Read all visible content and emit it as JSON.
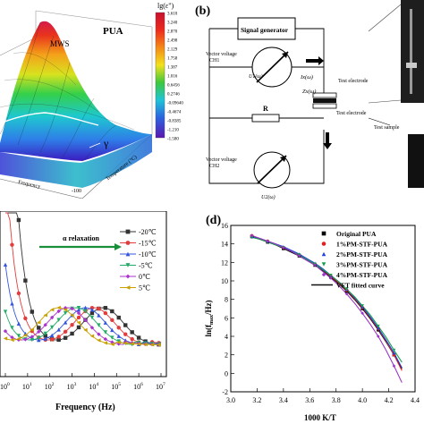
{
  "panel_a": {
    "inset_label": "PUA",
    "cbar_title": "lg(ε\")",
    "cbar_ticks": [
      "3.610",
      "3.240",
      "2.870",
      "2.498",
      "2.129",
      "1.758",
      "1.387",
      "1.016",
      "0.6456",
      "0.2746",
      "-0.09640",
      "-0.4674",
      "-0.8385",
      "-1.210",
      "-1.580"
    ],
    "label_mws": "MWS",
    "label_gamma": "γ",
    "axis_temp": "Temperature (°C)",
    "axis_freq": "Frequency",
    "tick_neg100": "-100"
  },
  "panel_b": {
    "letter": "(b)",
    "signal_generator": "Signal generator",
    "vv_ch1": "Vector voltage\nCH1",
    "vv_ch2": "Vector voltage\nCH2",
    "u1": "U1(ω)",
    "u2": "U2(ω)",
    "i": "Ix(ω)",
    "z": "Zx(ω)",
    "test_electrode_top": "Test electrode",
    "test_electrode_bottom": "Test electrode",
    "test_sample": "Test sample",
    "r": "R"
  },
  "panel_c": {
    "relaxation_label": "α relaxation",
    "xlabel": "Frequency (Hz)",
    "xticks": [
      "10",
      "10",
      "10",
      "10",
      "10",
      "10",
      "10",
      "10"
    ],
    "xtick_exps": [
      "0",
      "1",
      "2",
      "3",
      "4",
      "5",
      "6",
      "7"
    ],
    "chart_data": {
      "type": "line",
      "xlabel": "Frequency (Hz)",
      "x_scale": "log",
      "xlim": [
        1,
        10000000
      ],
      "series": [
        {
          "name": "-20℃",
          "color": "#333333",
          "marker": "square",
          "peak_log_f": 4.4
        },
        {
          "name": "-15℃",
          "color": "#e23c3c",
          "marker": "circle",
          "peak_log_f": 4.0
        },
        {
          "name": "-10℃",
          "color": "#3355dd",
          "marker": "triangle-up",
          "peak_log_f": 3.6
        },
        {
          "name": "-5℃",
          "color": "#22aa66",
          "marker": "triangle-down",
          "peak_log_f": 3.2
        },
        {
          "name": "0℃",
          "color": "#aa33cc",
          "marker": "diamond",
          "peak_log_f": 2.8
        },
        {
          "name": "5℃",
          "color": "#c8a000",
          "marker": "triangle-left",
          "peak_log_f": 2.4
        }
      ]
    }
  },
  "panel_d": {
    "letter": "(d)",
    "ylabel": "ln(f_max/Hz)",
    "xlabel": "1000 K/T",
    "chart_data": {
      "type": "scatter",
      "xlabel": "1000 K/T",
      "ylabel": "ln(fmax/Hz)",
      "xlim": [
        3.0,
        4.4
      ],
      "ylim": [
        -2,
        16
      ],
      "xticks": [
        "3.0",
        "3.2",
        "3.4",
        "3.6",
        "3.8",
        "4.0",
        "4.2",
        "4.4"
      ],
      "yticks": [
        "-2",
        "0",
        "2",
        "4",
        "6",
        "8",
        "10",
        "12",
        "14",
        "16"
      ],
      "series": [
        {
          "name": "Original PUA",
          "color": "#000000",
          "marker": "square",
          "x": [
            3.16,
            3.22,
            3.28,
            3.34,
            3.4,
            3.46,
            3.52,
            3.58,
            3.64,
            3.7,
            3.76,
            3.82,
            3.88,
            3.94,
            4.0,
            4.06,
            4.12,
            4.18,
            4.24,
            4.3
          ],
          "y": [
            14.8,
            14.5,
            14.2,
            13.9,
            13.5,
            13.1,
            12.7,
            12.2,
            11.7,
            11.1,
            10.4,
            9.7,
            8.9,
            8.0,
            7.0,
            5.9,
            4.7,
            3.4,
            2.0,
            0.5
          ]
        },
        {
          "name": "1%PM-STF-PUA",
          "color": "#e02020",
          "marker": "circle",
          "x": [
            3.16,
            3.22,
            3.28,
            3.34,
            3.4,
            3.46,
            3.52,
            3.58,
            3.64,
            3.7,
            3.76,
            3.82,
            3.88,
            3.94,
            4.0,
            4.06,
            4.12,
            4.18,
            4.24,
            4.3
          ],
          "y": [
            14.9,
            14.6,
            14.3,
            14.0,
            13.6,
            13.2,
            12.8,
            12.3,
            11.8,
            11.2,
            10.5,
            9.8,
            9.0,
            8.1,
            7.1,
            6.0,
            4.8,
            3.5,
            2.0,
            0.3
          ]
        },
        {
          "name": "2%PM-STF-PUA",
          "color": "#2040e0",
          "marker": "triangle-up",
          "x": [
            3.16,
            3.22,
            3.28,
            3.34,
            3.4,
            3.46,
            3.52,
            3.58,
            3.64,
            3.7,
            3.76,
            3.82,
            3.88,
            3.94,
            4.0,
            4.06,
            4.12,
            4.18,
            4.24,
            4.3
          ],
          "y": [
            14.8,
            14.6,
            14.3,
            14.0,
            13.7,
            13.3,
            12.9,
            12.4,
            11.9,
            11.3,
            10.6,
            9.9,
            9.1,
            8.2,
            7.2,
            6.1,
            4.9,
            3.6,
            2.2,
            0.6
          ]
        },
        {
          "name": "3%PM-STF-PUA",
          "color": "#15a050",
          "marker": "triangle-down",
          "x": [
            3.16,
            3.22,
            3.28,
            3.34,
            3.4,
            3.46,
            3.52,
            3.58,
            3.64,
            3.7,
            3.76,
            3.82,
            3.88,
            3.94,
            4.0,
            4.06,
            4.12,
            4.18,
            4.24,
            4.3
          ],
          "y": [
            14.7,
            14.5,
            14.2,
            13.9,
            13.6,
            13.2,
            12.8,
            12.3,
            11.8,
            11.2,
            10.6,
            9.9,
            9.1,
            8.3,
            7.3,
            6.3,
            5.1,
            3.9,
            2.5,
            1.2
          ]
        },
        {
          "name": "4%PM-STF-PUA",
          "color": "#9a35c8",
          "marker": "diamond",
          "x": [
            3.16,
            3.22,
            3.28,
            3.34,
            3.4,
            3.46,
            3.52,
            3.58,
            3.64,
            3.7,
            3.76,
            3.82,
            3.88,
            3.94,
            4.0,
            4.06,
            4.12,
            4.18,
            4.24,
            4.3
          ],
          "y": [
            14.9,
            14.6,
            14.3,
            14.0,
            13.6,
            13.2,
            12.7,
            12.2,
            11.7,
            11.0,
            10.3,
            9.5,
            8.6,
            7.6,
            6.5,
            5.3,
            4.0,
            2.5,
            0.8,
            -1.0
          ]
        }
      ],
      "fit": {
        "name": "VFT fitted curve",
        "color": "#111111"
      }
    }
  }
}
